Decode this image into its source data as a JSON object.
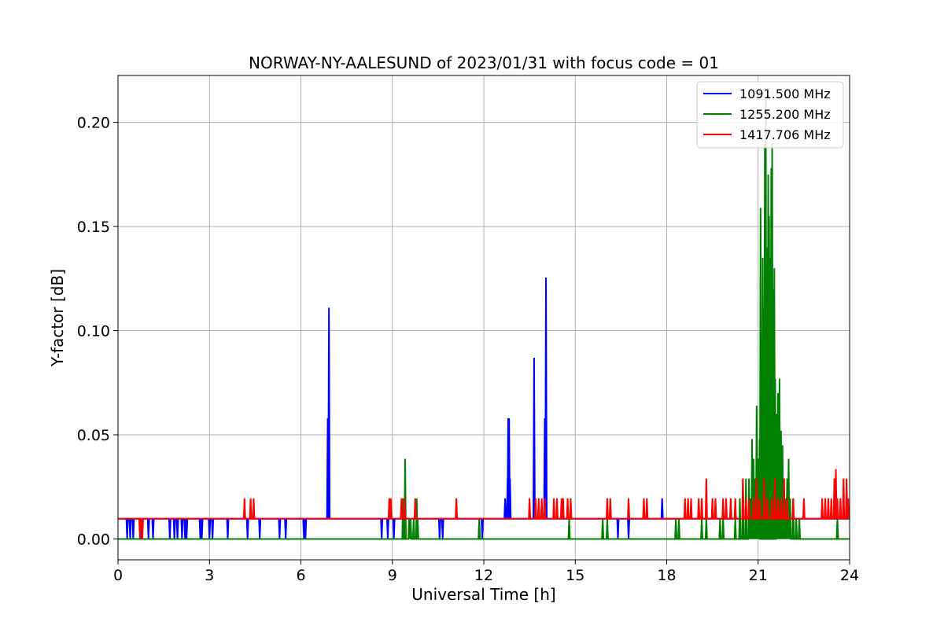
{
  "chart_data": {
    "type": "line",
    "title": "NORWAY-NY-AALESUND of 2023/01/31 with focus code = 01",
    "xlabel": "Universal Time [h]",
    "ylabel": "Y-factor [dB]",
    "xlim": [
      0,
      24
    ],
    "ylim": [
      -0.01,
      0.2225
    ],
    "xticks": [
      0,
      3,
      6,
      9,
      12,
      15,
      18,
      21,
      24
    ],
    "xtick_labels": [
      "0",
      "3",
      "6",
      "9",
      "12",
      "15",
      "18",
      "21",
      "24"
    ],
    "yticks": [
      0.0,
      0.05,
      0.1,
      0.15,
      0.2
    ],
    "ytick_labels": [
      "0.00",
      "0.05",
      "0.10",
      "0.15",
      "0.20"
    ],
    "grid": true,
    "legend_position": "top-right",
    "series": [
      {
        "name": "1091.500 MHz",
        "color": "#0000ff",
        "baseline": 0.0097,
        "spikes": [
          [
            0.3,
            0.0
          ],
          [
            0.4,
            0.0
          ],
          [
            0.5,
            0.0
          ],
          [
            0.75,
            0.0
          ],
          [
            1.0,
            0.0
          ],
          [
            1.15,
            0.0
          ],
          [
            1.7,
            0.0
          ],
          [
            1.85,
            0.0
          ],
          [
            1.95,
            0.0
          ],
          [
            2.1,
            0.0
          ],
          [
            2.2,
            0.0
          ],
          [
            2.25,
            0.0
          ],
          [
            2.7,
            0.0
          ],
          [
            2.75,
            0.0
          ],
          [
            3.0,
            0.0
          ],
          [
            3.1,
            0.0
          ],
          [
            3.6,
            0.0
          ],
          [
            4.25,
            0.0
          ],
          [
            4.65,
            0.0
          ],
          [
            5.3,
            0.0
          ],
          [
            5.5,
            0.0
          ],
          [
            6.1,
            0.0
          ],
          [
            6.15,
            0.0
          ],
          [
            6.88,
            0.058
          ],
          [
            6.92,
            0.111
          ],
          [
            8.65,
            0.0
          ],
          [
            8.85,
            0.0
          ],
          [
            9.05,
            0.0
          ],
          [
            10.55,
            0.0
          ],
          [
            10.65,
            0.0
          ],
          [
            11.95,
            0.0
          ],
          [
            12.7,
            0.0195
          ],
          [
            12.78,
            0.029
          ],
          [
            12.8,
            0.058
          ],
          [
            12.83,
            0.058
          ],
          [
            12.86,
            0.029
          ],
          [
            13.65,
            0.087
          ],
          [
            13.66,
            0.029
          ],
          [
            14.0,
            0.058
          ],
          [
            14.04,
            0.1255
          ],
          [
            16.4,
            0.0
          ],
          [
            16.75,
            0.0
          ],
          [
            17.85,
            0.0195
          ]
        ]
      },
      {
        "name": "1255.200 MHz",
        "color": "#008000",
        "baseline": 0.0,
        "spikes": [
          [
            9.35,
            0.0195
          ],
          [
            9.42,
            0.0385
          ],
          [
            9.55,
            0.0097
          ],
          [
            9.6,
            0.0097
          ],
          [
            9.7,
            0.0097
          ],
          [
            9.8,
            0.0195
          ],
          [
            9.83,
            0.0097
          ],
          [
            11.85,
            0.0097
          ],
          [
            14.8,
            0.0097
          ],
          [
            15.9,
            0.0097
          ],
          [
            16.05,
            0.0097
          ],
          [
            18.3,
            0.0097
          ],
          [
            18.4,
            0.0097
          ],
          [
            19.15,
            0.0097
          ],
          [
            19.3,
            0.0097
          ],
          [
            19.75,
            0.0097
          ],
          [
            19.85,
            0.0097
          ],
          [
            20.25,
            0.0097
          ],
          [
            20.4,
            0.0195
          ],
          [
            20.5,
            0.029
          ],
          [
            20.6,
            0.029
          ],
          [
            20.7,
            0.029
          ],
          [
            20.75,
            0.0195
          ],
          [
            20.8,
            0.048
          ],
          [
            20.85,
            0.0385
          ],
          [
            20.9,
            0.029
          ],
          [
            20.95,
            0.064
          ],
          [
            21.0,
            0.0385
          ],
          [
            21.05,
            0.048
          ],
          [
            21.08,
            0.159
          ],
          [
            21.12,
            0.077
          ],
          [
            21.15,
            0.135
          ],
          [
            21.18,
            0.111
          ],
          [
            21.2,
            0.086
          ],
          [
            21.22,
            0.19
          ],
          [
            21.25,
            0.211
          ],
          [
            21.28,
            0.14
          ],
          [
            21.3,
            0.125
          ],
          [
            21.33,
            0.175
          ],
          [
            21.36,
            0.155
          ],
          [
            21.4,
            0.135
          ],
          [
            21.43,
            0.178
          ],
          [
            21.46,
            0.19
          ],
          [
            21.48,
            0.12
          ],
          [
            21.5,
            0.1
          ],
          [
            21.53,
            0.13
          ],
          [
            21.56,
            0.077
          ],
          [
            21.6,
            0.06
          ],
          [
            21.65,
            0.07
          ],
          [
            21.7,
            0.077
          ],
          [
            21.75,
            0.052
          ],
          [
            21.8,
            0.045
          ],
          [
            21.85,
            0.029
          ],
          [
            21.9,
            0.0195
          ],
          [
            21.95,
            0.029
          ],
          [
            22.0,
            0.0385
          ],
          [
            22.05,
            0.0195
          ],
          [
            22.15,
            0.0195
          ],
          [
            22.25,
            0.0097
          ],
          [
            22.35,
            0.0097
          ],
          [
            23.6,
            0.0097
          ]
        ]
      },
      {
        "name": "1417.706 MHz",
        "color": "#ff0000",
        "baseline": 0.0097,
        "spikes": [
          [
            0.72,
            0.0
          ],
          [
            0.8,
            0.0
          ],
          [
            4.15,
            0.0195
          ],
          [
            4.35,
            0.0195
          ],
          [
            4.45,
            0.0195
          ],
          [
            8.9,
            0.0195
          ],
          [
            8.95,
            0.0195
          ],
          [
            9.3,
            0.0195
          ],
          [
            9.4,
            0.0195
          ],
          [
            9.75,
            0.0195
          ],
          [
            11.1,
            0.0195
          ],
          [
            13.5,
            0.0195
          ],
          [
            13.7,
            0.0195
          ],
          [
            13.8,
            0.0195
          ],
          [
            13.9,
            0.0195
          ],
          [
            14.0,
            0.0195
          ],
          [
            14.3,
            0.0195
          ],
          [
            14.4,
            0.0195
          ],
          [
            14.55,
            0.0195
          ],
          [
            14.6,
            0.0195
          ],
          [
            14.75,
            0.0195
          ],
          [
            14.85,
            0.0195
          ],
          [
            16.05,
            0.0195
          ],
          [
            16.15,
            0.0195
          ],
          [
            16.75,
            0.0195
          ],
          [
            17.25,
            0.0195
          ],
          [
            17.35,
            0.0195
          ],
          [
            18.6,
            0.0195
          ],
          [
            18.7,
            0.0195
          ],
          [
            18.8,
            0.0195
          ],
          [
            19.05,
            0.0195
          ],
          [
            19.15,
            0.0195
          ],
          [
            19.3,
            0.029
          ],
          [
            19.5,
            0.0195
          ],
          [
            19.6,
            0.0195
          ],
          [
            19.85,
            0.0195
          ],
          [
            19.95,
            0.0195
          ],
          [
            20.1,
            0.0195
          ],
          [
            20.25,
            0.0195
          ],
          [
            20.5,
            0.029
          ],
          [
            20.6,
            0.0195
          ],
          [
            20.7,
            0.0195
          ],
          [
            20.85,
            0.0195
          ],
          [
            20.95,
            0.029
          ],
          [
            21.05,
            0.0195
          ],
          [
            21.2,
            0.029
          ],
          [
            21.3,
            0.0195
          ],
          [
            21.45,
            0.0195
          ],
          [
            21.55,
            0.029
          ],
          [
            21.65,
            0.0195
          ],
          [
            21.75,
            0.0195
          ],
          [
            21.85,
            0.029
          ],
          [
            21.95,
            0.0195
          ],
          [
            22.15,
            0.0195
          ],
          [
            22.5,
            0.0195
          ],
          [
            23.1,
            0.0195
          ],
          [
            23.2,
            0.0195
          ],
          [
            23.3,
            0.0195
          ],
          [
            23.4,
            0.0195
          ],
          [
            23.5,
            0.029
          ],
          [
            23.55,
            0.0335
          ],
          [
            23.6,
            0.0195
          ],
          [
            23.7,
            0.0195
          ],
          [
            23.8,
            0.029
          ],
          [
            23.9,
            0.029
          ],
          [
            23.95,
            0.0195
          ]
        ]
      }
    ]
  }
}
